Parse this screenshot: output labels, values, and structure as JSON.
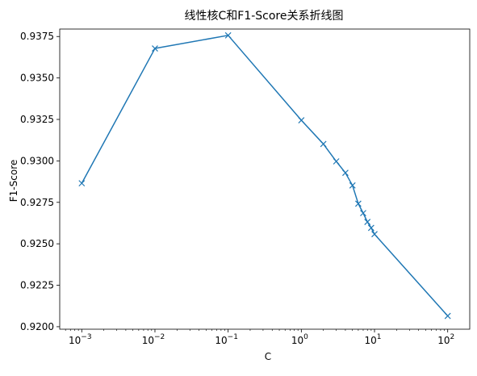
{
  "chart_data": {
    "type": "line",
    "title": "线性核C和F1-Score关系折线图",
    "xlabel": "C",
    "ylabel": "F1-Score",
    "x_scale": "log",
    "xlim": [
      0.0005,
      200
    ],
    "ylim": [
      0.91985,
      0.93795
    ],
    "grid": false,
    "marker": "x",
    "color": "#1f77b4",
    "x_ticks": [
      {
        "value": 0.001,
        "base": "10",
        "exp": "−3"
      },
      {
        "value": 0.01,
        "base": "10",
        "exp": "−2"
      },
      {
        "value": 0.1,
        "base": "10",
        "exp": "−1"
      },
      {
        "value": 1,
        "base": "10",
        "exp": "0"
      },
      {
        "value": 10,
        "base": "10",
        "exp": "1"
      },
      {
        "value": 100,
        "base": "10",
        "exp": "2"
      }
    ],
    "y_ticks": [
      "0.9200",
      "0.9225",
      "0.9250",
      "0.9275",
      "0.9300",
      "0.9325",
      "0.9350",
      "0.9375"
    ],
    "series": [
      {
        "x": [
          0.001,
          0.01,
          0.1,
          1,
          2,
          3,
          4,
          5,
          6,
          7,
          8,
          9,
          10,
          100
        ],
        "y": [
          0.92865,
          0.93678,
          0.93757,
          0.93245,
          0.93102,
          0.92997,
          0.92928,
          0.92852,
          0.92742,
          0.92685,
          0.92632,
          0.92596,
          0.92558,
          0.92065
        ]
      }
    ]
  }
}
